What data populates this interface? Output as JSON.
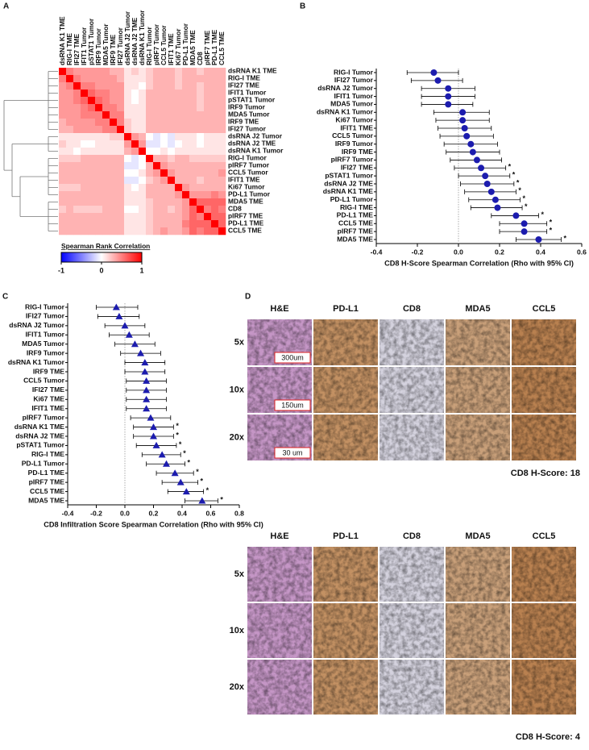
{
  "panel_labels": [
    "A",
    "B",
    "C",
    "D"
  ],
  "chart_data": [
    {
      "type": "heatmap",
      "categories": [
        "dsRNA K1 TME",
        "RIG-I TME",
        "IFI27 TME",
        "IFIT1 Tumor",
        "pSTAT1 Tumor",
        "IRF9 Tumor",
        "MDA5 Tumor",
        "IRF9 TME",
        "IFI27 Tumor",
        "dsRNA J2 Tumor",
        "dsRNA J2 TME",
        "dsRNA K1 Tumor",
        "RIG-I Tumor",
        "pIRF7 Tumor",
        "CCL5 Tumor",
        "IFIT1 TME",
        "Ki67 Tumor",
        "PD-L1 Tumor",
        "MDA5 TME",
        "CD8",
        "pIRF7 TME",
        "PD-L1 TME",
        "CCL5 TME"
      ],
      "values": [
        [
          1,
          0.5,
          0.4,
          0.4,
          0.4,
          0.4,
          0.4,
          0.3,
          0.3,
          0.1,
          0.2,
          0.1,
          0.2,
          0.3,
          0.3,
          0.3,
          0.2,
          0.3,
          0.3,
          0.2,
          0.3,
          0.3,
          0.3
        ],
        [
          0.5,
          1,
          0.5,
          0.4,
          0.4,
          0.4,
          0.4,
          0.4,
          0.3,
          0.1,
          0.1,
          0.1,
          0.2,
          0.3,
          0.3,
          0.3,
          0.2,
          0.3,
          0.3,
          0.3,
          0.3,
          0.3,
          0.3
        ],
        [
          0.4,
          0.5,
          1,
          0.5,
          0.5,
          0.4,
          0.4,
          0.4,
          0.4,
          0.1,
          0.1,
          0.0,
          0.2,
          0.3,
          0.3,
          0.3,
          0.2,
          0.3,
          0.3,
          0.2,
          0.3,
          0.3,
          0.3
        ],
        [
          0.4,
          0.4,
          0.5,
          1,
          0.6,
          0.5,
          0.5,
          0.4,
          0.4,
          0.1,
          0.0,
          0.1,
          0.3,
          0.3,
          0.3,
          0.3,
          0.3,
          0.3,
          0.3,
          0.2,
          0.3,
          0.3,
          0.3
        ],
        [
          0.4,
          0.4,
          0.5,
          0.6,
          1,
          0.6,
          0.5,
          0.4,
          0.4,
          0.1,
          0.0,
          0.1,
          0.3,
          0.3,
          0.3,
          0.3,
          0.3,
          0.3,
          0.3,
          0.2,
          0.3,
          0.3,
          0.3
        ],
        [
          0.4,
          0.4,
          0.4,
          0.5,
          0.6,
          1,
          0.5,
          0.5,
          0.4,
          0.1,
          0.1,
          0.1,
          0.3,
          0.3,
          0.3,
          0.3,
          0.3,
          0.3,
          0.3,
          0.2,
          0.3,
          0.3,
          0.3
        ],
        [
          0.4,
          0.4,
          0.4,
          0.5,
          0.5,
          0.5,
          1,
          0.5,
          0.5,
          0.1,
          0.1,
          0.1,
          0.3,
          0.3,
          0.3,
          0.3,
          0.3,
          0.3,
          0.3,
          0.3,
          0.3,
          0.3,
          0.3
        ],
        [
          0.3,
          0.4,
          0.4,
          0.4,
          0.4,
          0.5,
          0.5,
          1,
          0.5,
          0.2,
          0.1,
          0.1,
          0.3,
          0.3,
          0.3,
          0.3,
          0.3,
          0.3,
          0.3,
          0.3,
          0.3,
          0.3,
          0.3
        ],
        [
          0.3,
          0.3,
          0.4,
          0.4,
          0.4,
          0.4,
          0.5,
          0.5,
          1,
          0.2,
          0.1,
          0.1,
          0.3,
          0.3,
          0.3,
          0.3,
          0.3,
          0.3,
          0.3,
          0.3,
          0.3,
          0.3,
          0.3
        ],
        [
          0.1,
          0.1,
          0.1,
          0.1,
          0.1,
          0.1,
          0.1,
          0.2,
          0.2,
          1,
          0.4,
          0.3,
          0.0,
          -0.1,
          0.0,
          -0.1,
          0.1,
          0.1,
          0.1,
          0.0,
          0.1,
          0.1,
          0.1
        ],
        [
          0.2,
          0.1,
          0.1,
          0.0,
          0.0,
          0.1,
          0.1,
          0.1,
          0.1,
          0.4,
          1,
          0.4,
          -0.1,
          -0.1,
          0.0,
          -0.1,
          0.0,
          0.1,
          0.1,
          0.0,
          0.1,
          0.1,
          0.1
        ],
        [
          0.1,
          0.1,
          0.0,
          0.1,
          0.1,
          0.1,
          0.1,
          0.1,
          0.1,
          0.3,
          0.4,
          1,
          0.0,
          0.0,
          0.1,
          0.0,
          0.1,
          0.1,
          0.1,
          0.1,
          0.1,
          0.1,
          0.1
        ],
        [
          0.2,
          0.2,
          0.2,
          0.3,
          0.3,
          0.3,
          0.3,
          0.3,
          0.3,
          0.0,
          -0.1,
          0.0,
          1,
          0.3,
          0.3,
          0.2,
          0.3,
          0.3,
          0.2,
          0.2,
          0.2,
          0.2,
          0.2
        ],
        [
          0.3,
          0.3,
          0.3,
          0.3,
          0.3,
          0.3,
          0.3,
          0.3,
          0.3,
          -0.1,
          -0.1,
          0.0,
          0.3,
          1,
          0.4,
          0.3,
          0.3,
          0.3,
          0.3,
          0.3,
          0.3,
          0.3,
          0.3
        ],
        [
          0.3,
          0.3,
          0.3,
          0.3,
          0.3,
          0.3,
          0.3,
          0.3,
          0.3,
          0.0,
          0.0,
          0.1,
          0.3,
          0.4,
          1,
          0.4,
          0.3,
          0.3,
          0.3,
          0.3,
          0.3,
          0.3,
          0.4
        ],
        [
          0.3,
          0.3,
          0.3,
          0.3,
          0.3,
          0.3,
          0.3,
          0.3,
          0.3,
          -0.1,
          -0.1,
          0.0,
          0.2,
          0.3,
          0.4,
          1,
          0.3,
          0.3,
          0.3,
          0.2,
          0.3,
          0.3,
          0.3
        ],
        [
          0.2,
          0.2,
          0.2,
          0.3,
          0.3,
          0.3,
          0.3,
          0.3,
          0.3,
          0.1,
          0.0,
          0.1,
          0.3,
          0.3,
          0.3,
          0.3,
          1,
          0.4,
          0.3,
          0.3,
          0.3,
          0.3,
          0.3
        ],
        [
          0.3,
          0.3,
          0.3,
          0.3,
          0.3,
          0.3,
          0.3,
          0.3,
          0.3,
          0.1,
          0.1,
          0.1,
          0.3,
          0.3,
          0.3,
          0.3,
          0.4,
          1,
          0.4,
          0.4,
          0.4,
          0.5,
          0.4
        ],
        [
          0.3,
          0.3,
          0.3,
          0.3,
          0.3,
          0.3,
          0.3,
          0.3,
          0.3,
          0.1,
          0.1,
          0.1,
          0.2,
          0.3,
          0.3,
          0.3,
          0.3,
          0.4,
          1,
          0.6,
          0.6,
          0.6,
          0.6
        ],
        [
          0.2,
          0.3,
          0.2,
          0.2,
          0.2,
          0.2,
          0.3,
          0.3,
          0.3,
          0.0,
          0.0,
          0.1,
          0.2,
          0.3,
          0.3,
          0.2,
          0.3,
          0.4,
          0.6,
          1,
          0.5,
          0.6,
          0.5
        ],
        [
          0.3,
          0.3,
          0.3,
          0.3,
          0.3,
          0.3,
          0.3,
          0.3,
          0.3,
          0.1,
          0.1,
          0.1,
          0.2,
          0.3,
          0.3,
          0.3,
          0.3,
          0.4,
          0.6,
          0.5,
          1,
          0.6,
          0.6
        ],
        [
          0.3,
          0.3,
          0.3,
          0.3,
          0.3,
          0.3,
          0.3,
          0.3,
          0.3,
          0.1,
          0.1,
          0.1,
          0.2,
          0.3,
          0.3,
          0.3,
          0.3,
          0.5,
          0.6,
          0.6,
          0.6,
          1,
          0.6
        ],
        [
          0.3,
          0.3,
          0.3,
          0.3,
          0.3,
          0.3,
          0.3,
          0.3,
          0.3,
          0.1,
          0.1,
          0.1,
          0.2,
          0.3,
          0.4,
          0.3,
          0.3,
          0.4,
          0.6,
          0.5,
          0.6,
          0.6,
          1
        ]
      ],
      "colorbar_title": "Spearman Rank Correlation",
      "colorscale": [
        "#0000ff",
        "#ffffff",
        "#ff0000"
      ],
      "zlim": [
        -1,
        1
      ],
      "zticks": [
        -1,
        0,
        1
      ]
    },
    {
      "type": "forest",
      "categories": [
        "RIG-I Tumor",
        "IFI27 Tumor",
        "dsRNA J2 Tumor",
        "IFIT1 Tumor",
        "MDA5 Tumor",
        "dsRNA K1 Tumor",
        "Ki67 Tumor",
        "IFIT1 TME",
        "CCL5 Tumor",
        "IRF9 Tumor",
        "IRF9 TME",
        "pIRF7 Tumor",
        "IFI27 TME",
        "pSTAT1 Tumor",
        "dsRNA J2 TME",
        "dsRNA K1 TME",
        "PD-L1 Tumor",
        "RIG-I TME",
        "PD-L1 TME",
        "CCL5 TME",
        "pIRF7 TME",
        "MDA5 TME"
      ],
      "values": [
        -0.12,
        -0.1,
        -0.05,
        -0.05,
        -0.05,
        0.02,
        0.02,
        0.03,
        0.04,
        0.06,
        0.07,
        0.09,
        0.11,
        0.13,
        0.14,
        0.16,
        0.18,
        0.19,
        0.28,
        0.32,
        0.32,
        0.39
      ],
      "lower": [
        -0.25,
        -0.23,
        -0.18,
        -0.18,
        -0.18,
        -0.12,
        -0.11,
        -0.1,
        -0.09,
        -0.07,
        -0.06,
        -0.04,
        -0.02,
        0.0,
        0.01,
        0.03,
        0.05,
        0.06,
        0.16,
        0.2,
        0.2,
        0.28
      ],
      "upper": [
        0.0,
        0.02,
        0.08,
        0.08,
        0.07,
        0.15,
        0.15,
        0.16,
        0.17,
        0.19,
        0.2,
        0.21,
        0.23,
        0.25,
        0.27,
        0.28,
        0.3,
        0.31,
        0.39,
        0.43,
        0.43,
        0.5
      ],
      "significant": [
        false,
        false,
        false,
        false,
        false,
        false,
        false,
        false,
        false,
        false,
        false,
        false,
        true,
        true,
        true,
        true,
        true,
        true,
        true,
        true,
        true,
        true
      ],
      "sig_label": "*",
      "marker": "circle",
      "color": "#1c1cae",
      "xlim": [
        -0.4,
        0.6
      ],
      "xticks": [
        -0.4,
        -0.2,
        {
          "value": 0,
          "label": "0.0"
        },
        0.2,
        0.4,
        0.6
      ],
      "refline": 0,
      "xlabel": "CD8 H-Score Spearman Correlation (Rho with 95% CI)"
    },
    {
      "type": "forest",
      "categories": [
        "RIG-I Tumor",
        "IFI27 Tumor",
        "dsRNA J2 Tumor",
        "IFIT1 Tumor",
        "MDA5 Tumor",
        "IRF9 Tumor",
        "dsRNA K1 Tumor",
        "IRF9 TME",
        "CCL5 Tumor",
        "IFI27 TME",
        "Ki67 TME",
        "IFIT1 TME",
        "pIRF7 Tumor",
        "dsRNA K1 TME",
        "dsRNA J2 TME",
        "pSTAT1 Tumor",
        "RIG-I TME",
        "PD-L1 Tumor",
        "PD-L1 TME",
        "pIRF7 TME",
        "CCL5 TME",
        "MDA5 TME"
      ],
      "values": [
        -0.06,
        -0.04,
        0.0,
        0.03,
        0.07,
        0.11,
        0.14,
        0.14,
        0.15,
        0.15,
        0.15,
        0.15,
        0.18,
        0.2,
        0.2,
        0.22,
        0.26,
        0.29,
        0.35,
        0.39,
        0.43,
        0.54
      ],
      "lower": [
        -0.2,
        -0.19,
        -0.14,
        -0.11,
        -0.07,
        -0.03,
        0.0,
        0.0,
        0.01,
        0.01,
        0.01,
        0.01,
        0.04,
        0.06,
        0.06,
        0.08,
        0.12,
        0.15,
        0.22,
        0.26,
        0.3,
        0.42
      ],
      "upper": [
        0.09,
        0.1,
        0.14,
        0.17,
        0.21,
        0.25,
        0.28,
        0.28,
        0.29,
        0.29,
        0.29,
        0.29,
        0.32,
        0.34,
        0.34,
        0.36,
        0.39,
        0.42,
        0.48,
        0.51,
        0.55,
        0.65
      ],
      "significant": [
        false,
        false,
        false,
        false,
        false,
        false,
        false,
        false,
        false,
        false,
        false,
        false,
        false,
        true,
        true,
        true,
        true,
        true,
        true,
        true,
        true,
        true
      ],
      "sig_label": "*",
      "marker": "triangle",
      "color": "#1c1cae",
      "xlim": [
        -0.4,
        0.8
      ],
      "xticks": [
        -0.4,
        -0.2,
        {
          "value": 0,
          "label": "0.0"
        },
        0.2,
        0.4,
        0.6,
        0.8
      ],
      "refline": 0,
      "xlabel": "CD8 Infiltration Score Spearman Correlation (Rho with 95% CI)"
    }
  ],
  "micrographs": [
    {
      "columns": [
        "H&E",
        "PD-L1",
        "CD8",
        "MDA5",
        "CCL5"
      ],
      "rows": [
        "5x",
        "10x",
        "20x"
      ],
      "scale_bars": [
        "300um",
        "150um",
        "30 um"
      ],
      "caption": "CD8 H-Score: 18"
    },
    {
      "columns": [
        "H&E",
        "PD-L1",
        "CD8",
        "MDA5",
        "CCL5"
      ],
      "rows": [
        "5x",
        "10x",
        "20x"
      ],
      "caption": "CD8 H-Score: 4"
    }
  ]
}
